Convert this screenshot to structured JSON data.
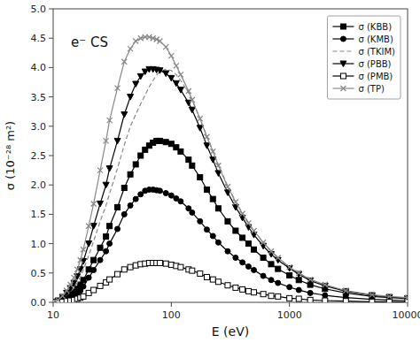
{
  "chart_data": {
    "type": "line",
    "annotations": [
      "e⁻ CS"
    ],
    "x_label": "E (eV)",
    "y_label": "σ (10⁻²⁸ m²)",
    "log": "x",
    "grid": false,
    "legend": "upper right",
    "xlim": [
      10,
      10000
    ],
    "xticks": [
      10,
      100,
      1000,
      10000
    ],
    "ylim": [
      0,
      5.0
    ],
    "yticks": [
      {
        "value": 0.0,
        "label": "0.0"
      },
      0.5,
      {
        "value": 1.0,
        "label": "1.0"
      },
      1.5,
      {
        "value": 2.0,
        "label": "2.0"
      },
      2.5,
      {
        "value": 3.0,
        "label": "3.0"
      },
      3.5,
      {
        "value": 4.0,
        "label": "4.0"
      },
      4.5,
      {
        "value": 5.0,
        "label": "5.0"
      }
    ],
    "x": [
      10,
      11,
      12,
      13,
      14,
      15,
      16,
      17,
      18,
      20,
      22,
      25,
      28,
      30,
      35,
      40,
      45,
      50,
      55,
      60,
      65,
      70,
      75,
      80,
      90,
      100,
      110,
      120,
      140,
      150,
      175,
      200,
      225,
      250,
      300,
      350,
      400,
      450,
      500,
      600,
      700,
      800,
      1000,
      1200,
      1500,
      2000,
      3000,
      5000,
      7000,
      10000
    ],
    "series": [
      {
        "name": "σ (KBB)",
        "color": "#000000",
        "marker": "square",
        "line_style": "solid",
        "values": [
          0.0,
          0.02,
          0.05,
          0.09,
          0.13,
          0.18,
          0.23,
          0.3,
          0.38,
          0.56,
          0.72,
          0.93,
          1.12,
          1.3,
          1.62,
          1.95,
          2.18,
          2.35,
          2.5,
          2.6,
          2.67,
          2.72,
          2.75,
          2.75,
          2.73,
          2.7,
          2.64,
          2.57,
          2.43,
          2.33,
          2.13,
          1.92,
          1.76,
          1.6,
          1.38,
          1.22,
          1.1,
          1.0,
          0.9,
          0.76,
          0.65,
          0.57,
          0.46,
          0.38,
          0.3,
          0.23,
          0.16,
          0.1,
          0.08,
          0.06
        ]
      },
      {
        "name": "σ (KMB)",
        "color": "#000000",
        "marker": "circle",
        "line_style": "solid",
        "values": [
          0.0,
          0.01,
          0.03,
          0.05,
          0.08,
          0.11,
          0.15,
          0.2,
          0.27,
          0.42,
          0.55,
          0.72,
          0.87,
          1.0,
          1.25,
          1.5,
          1.65,
          1.76,
          1.84,
          1.9,
          1.92,
          1.92,
          1.91,
          1.9,
          1.86,
          1.82,
          1.77,
          1.72,
          1.6,
          1.53,
          1.38,
          1.24,
          1.13,
          1.02,
          0.87,
          0.76,
          0.68,
          0.61,
          0.55,
          0.45,
          0.38,
          0.33,
          0.26,
          0.21,
          0.16,
          0.12,
          0.08,
          0.05,
          0.04,
          0.03
        ]
      },
      {
        "name": "σ (TKIM)",
        "color": "#888888",
        "marker": "none",
        "line_style": "dashed",
        "values": [
          0.0,
          0.03,
          0.07,
          0.12,
          0.18,
          0.25,
          0.33,
          0.43,
          0.55,
          0.8,
          1.04,
          1.38,
          1.65,
          1.85,
          2.28,
          2.68,
          3.0,
          3.2,
          3.38,
          3.53,
          3.67,
          3.78,
          3.87,
          3.93,
          3.97,
          3.95,
          3.88,
          3.78,
          3.57,
          3.45,
          3.13,
          2.83,
          2.58,
          2.35,
          1.98,
          1.72,
          1.52,
          1.36,
          1.22,
          1.02,
          0.87,
          0.76,
          0.6,
          0.49,
          0.38,
          0.29,
          0.19,
          0.12,
          0.09,
          0.07
        ]
      },
      {
        "name": "σ (PBB)",
        "color": "#000000",
        "marker": "triangle-down",
        "line_style": "solid",
        "values": [
          0.0,
          0.03,
          0.09,
          0.16,
          0.24,
          0.33,
          0.44,
          0.56,
          0.7,
          1.0,
          1.3,
          1.68,
          2.0,
          2.28,
          2.75,
          3.2,
          3.5,
          3.72,
          3.85,
          3.93,
          3.97,
          3.97,
          3.96,
          3.95,
          3.9,
          3.82,
          3.73,
          3.62,
          3.4,
          3.28,
          2.97,
          2.67,
          2.43,
          2.2,
          1.87,
          1.62,
          1.44,
          1.28,
          1.15,
          0.96,
          0.82,
          0.72,
          0.58,
          0.48,
          0.37,
          0.28,
          0.19,
          0.12,
          0.09,
          0.07
        ]
      },
      {
        "name": "σ (PMB)",
        "color": "#000000",
        "marker": "square-open",
        "line_style": "solid",
        "values": [
          0.0,
          0.005,
          0.01,
          0.02,
          0.03,
          0.04,
          0.06,
          0.08,
          0.1,
          0.16,
          0.21,
          0.28,
          0.34,
          0.39,
          0.48,
          0.56,
          0.6,
          0.63,
          0.65,
          0.66,
          0.67,
          0.67,
          0.67,
          0.67,
          0.66,
          0.64,
          0.62,
          0.6,
          0.56,
          0.54,
          0.49,
          0.43,
          0.39,
          0.35,
          0.29,
          0.25,
          0.22,
          0.19,
          0.17,
          0.14,
          0.11,
          0.1,
          0.07,
          0.06,
          0.04,
          0.03,
          0.02,
          0.01,
          0.008,
          0.005
        ]
      },
      {
        "name": "σ (TP)",
        "color": "#888888",
        "marker": "x",
        "line_style": "solid",
        "values": [
          0.0,
          0.04,
          0.11,
          0.2,
          0.3,
          0.42,
          0.56,
          0.72,
          0.9,
          1.3,
          1.68,
          2.25,
          2.75,
          3.1,
          3.65,
          4.1,
          4.32,
          4.45,
          4.5,
          4.52,
          4.52,
          4.5,
          4.48,
          4.45,
          4.35,
          4.2,
          4.03,
          3.88,
          3.6,
          3.45,
          3.13,
          2.82,
          2.57,
          2.33,
          1.97,
          1.71,
          1.51,
          1.35,
          1.22,
          1.02,
          0.87,
          0.76,
          0.6,
          0.5,
          0.39,
          0.3,
          0.2,
          0.13,
          0.1,
          0.08
        ]
      }
    ]
  }
}
